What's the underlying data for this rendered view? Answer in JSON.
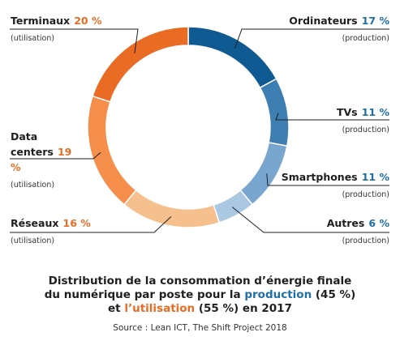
{
  "chart_data": {
    "type": "pie",
    "donut": true,
    "slices": [
      {
        "label": "Ordinateurs",
        "value": 17,
        "value_label": "17 %",
        "group": "(production)",
        "color": "#0f5a92"
      },
      {
        "label": "TVs",
        "value": 11,
        "value_label": "11 %",
        "group": "(production)",
        "color": "#3e7eb3"
      },
      {
        "label": "Smartphones",
        "value": 11,
        "value_label": "11 %",
        "group": "(production)",
        "color": "#79a6cf"
      },
      {
        "label": "Autres",
        "value": 6,
        "value_label": "6 %",
        "group": "(production)",
        "color": "#abc8e3"
      },
      {
        "label": "Réseaux",
        "value": 16,
        "value_label": "16 %",
        "group": "(utilisation)",
        "color": "#f6c08e"
      },
      {
        "label": "Data centers",
        "value": 19,
        "value_label": "19 %",
        "group": "(utilisation)",
        "color": "#f58d4b"
      },
      {
        "label": "Terminaux",
        "value": 20,
        "value_label": "20 %",
        "group": "(utilisation)",
        "color": "#ea6b24"
      }
    ],
    "title_lines": [
      {
        "text_before": "Distribution de la consommation d’énergie finale",
        "highlight": "",
        "text_after": ""
      },
      {
        "text_before": "du numérique par poste pour la ",
        "highlight": "production",
        "text_after": " (45 %)"
      },
      {
        "text_before": "et ",
        "highlight": "l’utilisation",
        "text_after": " (55 %) en 2017"
      }
    ],
    "source": "Source : Lean ICT, The Shift Project 2018"
  },
  "colors": {
    "production_accent": "#1f6fa8",
    "utilisation_accent": "#ea6b24",
    "leader_line": "#1f1f1f"
  }
}
